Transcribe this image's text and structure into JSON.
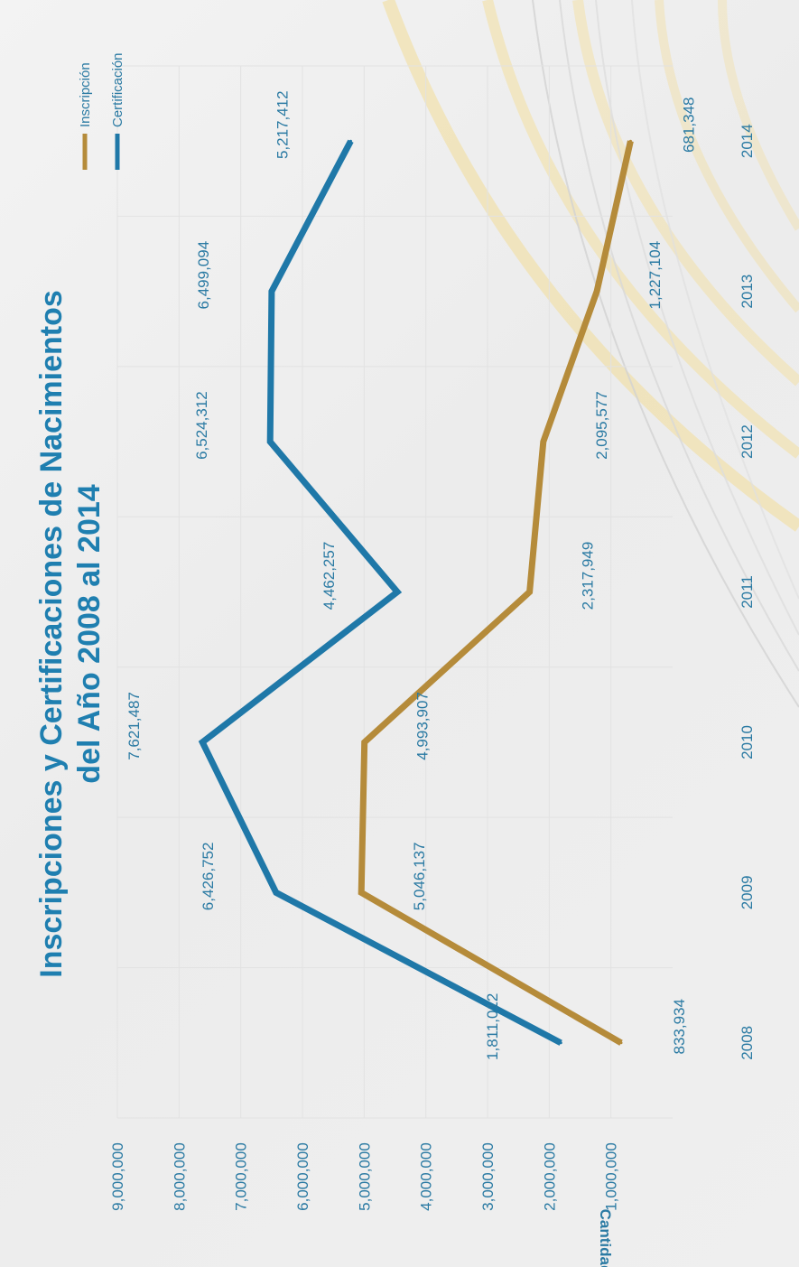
{
  "chart_data": {
    "type": "line",
    "title_lines": [
      "Inscripciones y Certificaciones de Nacimientos",
      "del Año 2008 al 2014"
    ],
    "ylabel": "Cantidad",
    "xlabel": "",
    "categories": [
      "2008",
      "2009",
      "2010",
      "2011",
      "2012",
      "2013",
      "2014"
    ],
    "yticks": [
      "1,000,000",
      "2,000,000",
      "3,000,000",
      "4,000,000",
      "5,000,000",
      "6,000,000",
      "7,000,000",
      "8,000,000",
      "9,000,000"
    ],
    "ylim": [
      0,
      9000000
    ],
    "grid": true,
    "legend_position": "right",
    "series": [
      {
        "name": "Certificación",
        "color": "#1f78a8",
        "values": [
          1811012,
          6426752,
          7621487,
          4462257,
          6524312,
          6499094,
          5217412
        ],
        "labels": [
          "1,811,012",
          "6,426,752",
          "7,621,487",
          "4,462,257",
          "6,524,312",
          "6,499,094",
          "5,217,412"
        ]
      },
      {
        "name": "Inscripción",
        "color": "#b58b3a",
        "values": [
          833934,
          5046137,
          4993907,
          2317949,
          2095577,
          1227104,
          681348
        ],
        "labels": [
          "833,934",
          "5,046,137",
          "4,993,907",
          "2,317,949",
          "2,095,577",
          "1,227,104",
          "681,348"
        ]
      }
    ]
  }
}
